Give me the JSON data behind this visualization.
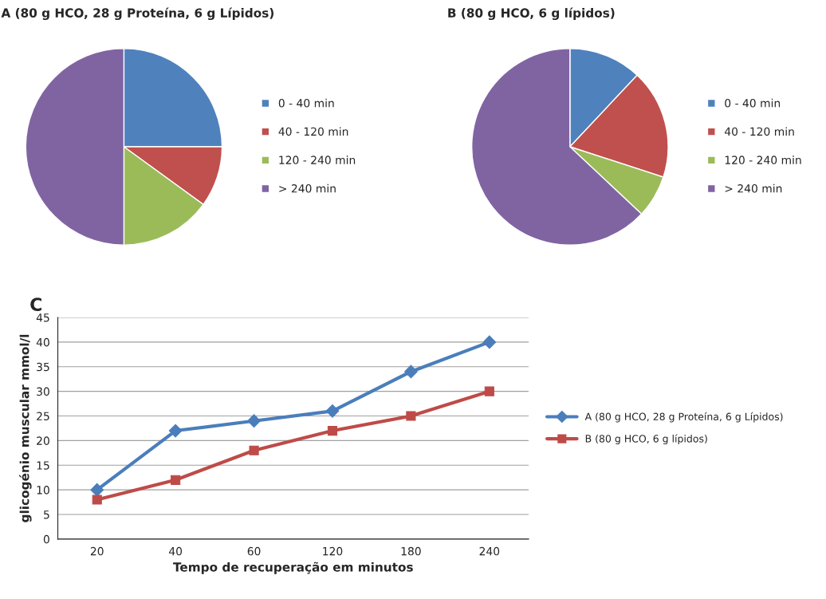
{
  "chart_data": [
    {
      "type": "pie",
      "title": "A (80 g HCO, 28 g Proteína, 6 g Lípidos)",
      "categories": [
        "0 - 40 min",
        "40 - 120 min",
        "120 - 240 min",
        "> 240 min"
      ],
      "values": [
        25,
        10,
        15,
        50
      ],
      "colors": [
        "#4f81bd",
        "#c0504d",
        "#9bbb59",
        "#8064a2"
      ],
      "legend": "right"
    },
    {
      "type": "pie",
      "title": "B (80 g HCO, 6 g lípidos)",
      "categories": [
        "0 - 40 min",
        "40 - 120 min",
        "120 - 240 min",
        "> 240 min"
      ],
      "values": [
        12,
        18,
        7,
        63
      ],
      "colors": [
        "#4f81bd",
        "#c0504d",
        "#9bbb59",
        "#8064a2"
      ],
      "legend": "right"
    },
    {
      "type": "line",
      "title": "C",
      "xlabel": "Tempo de recuperação em minutos",
      "ylabel": "glicogénio muscular mmol/l",
      "categories": [
        "20",
        "40",
        "60",
        "120",
        "180",
        "240"
      ],
      "series": [
        {
          "name": "A (80 g HCO, 28 g Proteína, 6 g Lípidos)",
          "color": "#4a7ebb",
          "values": [
            10,
            22,
            24,
            26,
            34,
            40
          ],
          "marker": "diamond"
        },
        {
          "name": "B (80 g HCO, 6 g lípidos)",
          "color": "#be4b48",
          "values": [
            8,
            12,
            18,
            22,
            25,
            30
          ],
          "marker": "square"
        }
      ],
      "ylim": [
        0,
        45
      ],
      "yticks": [
        0,
        5,
        10,
        15,
        20,
        25,
        30,
        35,
        40,
        45
      ],
      "grid": "y",
      "legend": "right",
      "line_style": "solid"
    }
  ]
}
